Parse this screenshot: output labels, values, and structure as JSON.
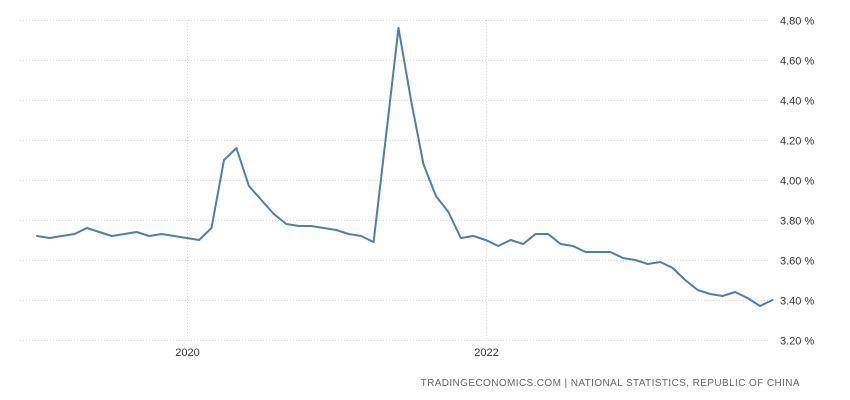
{
  "chart_data": {
    "type": "line",
    "title": "",
    "xlabel": "",
    "ylabel": "",
    "x_range": [
      "2019-01",
      "2023-11"
    ],
    "ylim": [
      3.2,
      4.8
    ],
    "y_ticks": [
      3.2,
      3.4,
      3.6,
      3.8,
      4.0,
      4.2,
      4.4,
      4.6,
      4.8
    ],
    "y_tick_labels": [
      "3.20 %",
      "3.40 %",
      "3.60 %",
      "3.80 %",
      "4.00 %",
      "4.20 %",
      "4.40 %",
      "4.60 %",
      "4.80 %"
    ],
    "y_axis_position": "right",
    "x_ticks": [
      "2020-01",
      "2022-01"
    ],
    "x_tick_labels": [
      "2020",
      "2022"
    ],
    "grid": true,
    "legend": "none",
    "series": [
      {
        "color": "#4f7fa6",
        "points": [
          [
            "2019-01",
            3.72
          ],
          [
            "2019-02",
            3.71
          ],
          [
            "2019-03",
            3.72
          ],
          [
            "2019-04",
            3.73
          ],
          [
            "2019-05",
            3.76
          ],
          [
            "2019-06",
            3.74
          ],
          [
            "2019-07",
            3.72
          ],
          [
            "2019-08",
            3.73
          ],
          [
            "2019-09",
            3.74
          ],
          [
            "2019-10",
            3.72
          ],
          [
            "2019-11",
            3.73
          ],
          [
            "2019-12",
            3.72
          ],
          [
            "2020-01",
            3.71
          ],
          [
            "2020-02",
            3.7
          ],
          [
            "2020-03",
            3.76
          ],
          [
            "2020-04",
            4.1
          ],
          [
            "2020-05",
            4.16
          ],
          [
            "2020-06",
            3.97
          ],
          [
            "2020-07",
            3.9
          ],
          [
            "2020-08",
            3.83
          ],
          [
            "2020-09",
            3.78
          ],
          [
            "2020-10",
            3.77
          ],
          [
            "2020-11",
            3.77
          ],
          [
            "2020-12",
            3.76
          ],
          [
            "2021-01",
            3.75
          ],
          [
            "2021-02",
            3.73
          ],
          [
            "2021-03",
            3.72
          ],
          [
            "2021-04",
            3.69
          ],
          [
            "2021-05",
            4.22
          ],
          [
            "2021-06",
            4.76
          ],
          [
            "2021-07",
            4.4
          ],
          [
            "2021-08",
            4.08
          ],
          [
            "2021-09",
            3.92
          ],
          [
            "2021-10",
            3.84
          ],
          [
            "2021-11",
            3.71
          ],
          [
            "2021-12",
            3.72
          ],
          [
            "2022-01",
            3.7
          ],
          [
            "2022-02",
            3.67
          ],
          [
            "2022-03",
            3.7
          ],
          [
            "2022-04",
            3.68
          ],
          [
            "2022-05",
            3.73
          ],
          [
            "2022-06",
            3.73
          ],
          [
            "2022-07",
            3.68
          ],
          [
            "2022-08",
            3.67
          ],
          [
            "2022-09",
            3.64
          ],
          [
            "2022-10",
            3.64
          ],
          [
            "2022-11",
            3.64
          ],
          [
            "2022-12",
            3.61
          ],
          [
            "2023-01",
            3.6
          ],
          [
            "2023-02",
            3.58
          ],
          [
            "2023-03",
            3.59
          ],
          [
            "2023-04",
            3.56
          ],
          [
            "2023-05",
            3.5
          ],
          [
            "2023-06",
            3.45
          ],
          [
            "2023-07",
            3.43
          ],
          [
            "2023-08",
            3.42
          ],
          [
            "2023-09",
            3.44
          ],
          [
            "2023-10",
            3.41
          ],
          [
            "2023-11",
            3.37
          ],
          [
            "2023-12",
            3.4
          ]
        ]
      }
    ],
    "source": "TRADINGECONOMICS.COM  |  NATIONAL STATISTICS, REPUBLIC OF CHINA"
  }
}
